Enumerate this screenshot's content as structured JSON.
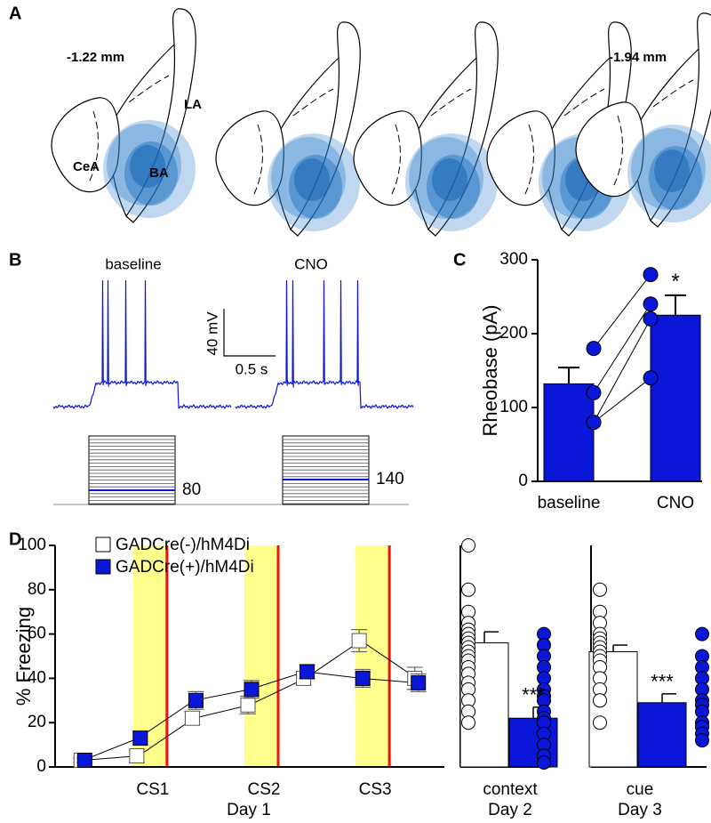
{
  "panel_labels": [
    "A",
    "B",
    "C",
    "D"
  ],
  "panel_a": {
    "levels": [
      "-1.22 mm",
      "-1.94 mm"
    ],
    "regions": [
      "LA",
      "CeA",
      "BA"
    ]
  },
  "panel_b": {
    "conditions": [
      "baseline",
      "CNO"
    ],
    "scale_y": "40 mV",
    "scale_x": "0.5 s",
    "rheobase_steps": [
      80,
      140
    ]
  },
  "chart_data": [
    {
      "type": "bar",
      "y_label": "Rheobase (pA)",
      "categories": [
        "baseline",
        "CNO"
      ],
      "values": [
        132,
        225
      ],
      "errors": [
        22,
        27
      ],
      "color": "#0b17d8",
      "points": [
        [
          180,
          120,
          80,
          80
        ],
        [
          280,
          240,
          220,
          140
        ]
      ],
      "annotation": "*",
      "ylim": [
        0,
        300
      ],
      "yticks": [
        0,
        100,
        200,
        300
      ]
    },
    {
      "type": "line",
      "y_label": "% Freezing",
      "x_label": "Day 1",
      "categories": [
        null,
        "CS1",
        null,
        "CS2",
        null,
        "CS3",
        null
      ],
      "series": [
        {
          "name": "GADCre(-)/hM4Di",
          "color": "#ffffff",
          "values": [
            3,
            5,
            22,
            28,
            40,
            57,
            40
          ],
          "errors": [
            1,
            3,
            3,
            4,
            3,
            5,
            5
          ]
        },
        {
          "name": "GADCre(+)/hM4Di",
          "color": "#0b17d8",
          "values": [
            3,
            13,
            30,
            35,
            43,
            40,
            38
          ],
          "errors": [
            1,
            3,
            4,
            4,
            3,
            4,
            4
          ]
        }
      ],
      "ylim": [
        0,
        100
      ],
      "yticks": [
        0,
        20,
        40,
        60,
        80,
        100
      ]
    },
    {
      "type": "bar_scatter",
      "x_label": "context",
      "x_sublabel": "Day 2",
      "values": [
        56,
        22
      ],
      "errors": [
        5,
        5
      ],
      "colors": [
        "#ffffff",
        "#0b17d8"
      ],
      "points": [
        [
          100,
          80,
          70,
          65,
          62,
          60,
          58,
          56,
          54,
          52,
          50,
          48,
          45,
          42,
          38,
          35,
          30,
          25,
          20
        ],
        [
          60,
          55,
          50,
          45,
          40,
          35,
          32,
          30,
          25,
          22,
          20,
          15,
          10,
          5,
          2
        ]
      ],
      "annotation": "***",
      "ylim": [
        0,
        100
      ]
    },
    {
      "type": "bar_scatter",
      "x_label": "cue",
      "x_sublabel": "Day 3",
      "values": [
        52,
        29
      ],
      "errors": [
        3,
        4
      ],
      "colors": [
        "#ffffff",
        "#0b17d8"
      ],
      "points": [
        [
          80,
          70,
          65,
          60,
          58,
          56,
          54,
          52,
          50,
          48,
          45,
          40,
          35,
          30,
          20
        ],
        [
          60,
          50,
          45,
          40,
          35,
          30,
          28,
          25,
          20,
          18,
          15,
          12
        ]
      ],
      "annotation": "***",
      "ylim": [
        0,
        100
      ]
    }
  ]
}
